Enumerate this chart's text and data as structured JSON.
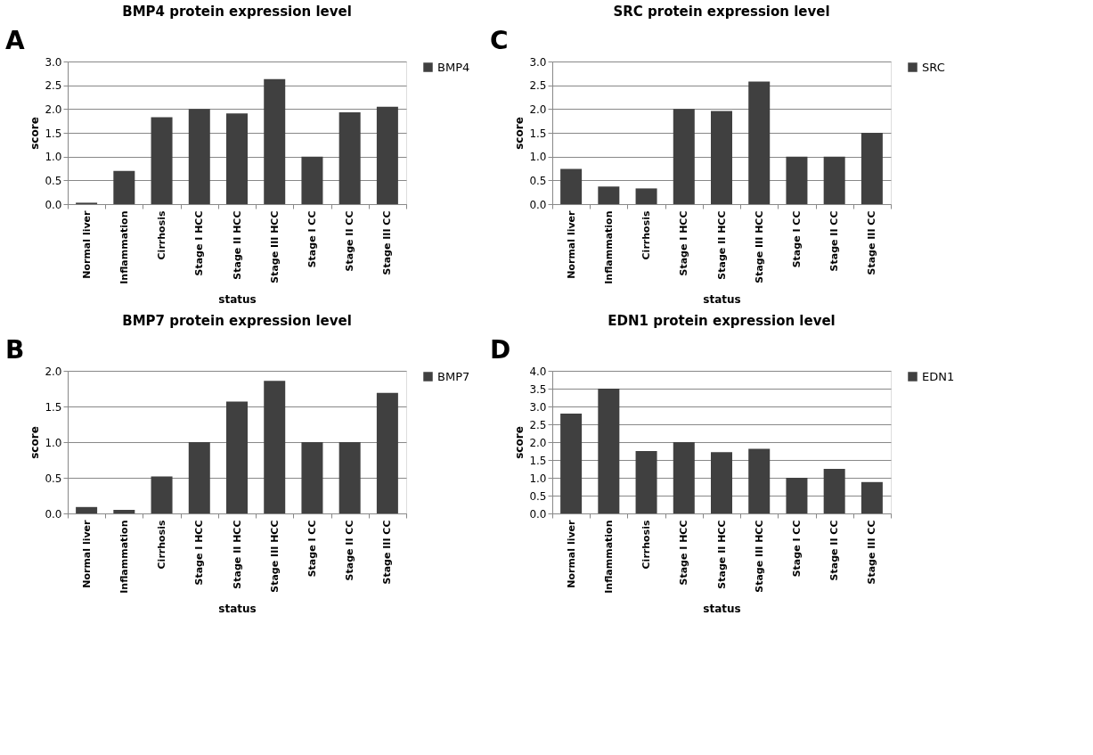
{
  "chart_data": [
    {
      "type": "bar",
      "title": "BMP4 protein expression level",
      "annotations": [
        "A"
      ],
      "xlabel": "status",
      "ylabel": "score",
      "categories": [
        "Normal liver",
        "Inflammation",
        "Cirrhosis",
        "Stage I HCC",
        "Stage II HCC",
        "Stage III HCC",
        "Stage I CC",
        "Stage II CC",
        "Stage III CC"
      ],
      "series": [
        {
          "name": "BMP4",
          "color": "#404040",
          "values": [
            0.03,
            0.7,
            1.83,
            2.0,
            1.91,
            2.63,
            1.0,
            1.93,
            2.05
          ]
        }
      ],
      "ylim": [
        0,
        3
      ],
      "yticks": [
        {
          "value": 0,
          "label": "0.0"
        },
        {
          "value": 0.5,
          "label": "0.5"
        },
        {
          "value": 1,
          "label": "1.0"
        },
        {
          "value": 1.5,
          "label": "1.5"
        },
        {
          "value": 2,
          "label": "2.0"
        },
        {
          "value": 2.5,
          "label": "2.5"
        },
        {
          "value": 3,
          "label": "3.0"
        }
      ],
      "grid": "y",
      "legend": "right"
    },
    {
      "type": "bar",
      "title": "SRC protein expression level",
      "annotations": [
        "C"
      ],
      "xlabel": "status",
      "ylabel": "score",
      "categories": [
        "Normal liver",
        "Inflammation",
        "Cirrhosis",
        "Stage I HCC",
        "Stage II HCC",
        "Stage III HCC",
        "Stage I CC",
        "Stage II CC",
        "Stage III CC"
      ],
      "series": [
        {
          "name": "SRC",
          "color": "#404040",
          "values": [
            0.74,
            0.37,
            0.33,
            2.0,
            1.96,
            2.58,
            1.0,
            1.0,
            1.5
          ]
        }
      ],
      "ylim": [
        0,
        3
      ],
      "yticks": [
        {
          "value": 0,
          "label": "0.0"
        },
        {
          "value": 0.5,
          "label": "0.5"
        },
        {
          "value": 1,
          "label": "1.0"
        },
        {
          "value": 1.5,
          "label": "1.5"
        },
        {
          "value": 2,
          "label": "2.0"
        },
        {
          "value": 2.5,
          "label": "2.5"
        },
        {
          "value": 3,
          "label": "3.0"
        }
      ],
      "grid": "y",
      "legend": "right"
    },
    {
      "type": "bar",
      "title": "BMP7 protein expression level",
      "annotations": [
        "B"
      ],
      "xlabel": "status",
      "ylabel": "score",
      "categories": [
        "Normal liver",
        "Inflammation",
        "Cirrhosis",
        "Stage I HCC",
        "Stage II HCC",
        "Stage III HCC",
        "Stage I CC",
        "Stage II CC",
        "Stage III CC"
      ],
      "series": [
        {
          "name": "BMP7",
          "color": "#404040",
          "values": [
            0.09,
            0.05,
            0.52,
            1.0,
            1.57,
            1.86,
            1.0,
            1.0,
            1.69
          ]
        }
      ],
      "ylim": [
        0,
        2
      ],
      "yticks": [
        {
          "value": 0,
          "label": "0.0"
        },
        {
          "value": 0.5,
          "label": "0.5"
        },
        {
          "value": 1,
          "label": "1.0"
        },
        {
          "value": 1.5,
          "label": "1.5"
        },
        {
          "value": 2,
          "label": "2.0"
        }
      ],
      "grid": "y",
      "legend": "right"
    },
    {
      "type": "bar",
      "title": "EDN1 protein expression level",
      "annotations": [
        "D"
      ],
      "xlabel": "status",
      "ylabel": "score",
      "categories": [
        "Normal liver",
        "Inflammation",
        "Cirrhosis",
        "Stage I HCC",
        "Stage II HCC",
        "Stage III HCC",
        "Stage I CC",
        "Stage II CC",
        "Stage III CC"
      ],
      "series": [
        {
          "name": "EDN1",
          "color": "#404040",
          "values": [
            2.8,
            3.5,
            1.75,
            2.0,
            1.72,
            1.81,
            1.0,
            1.25,
            0.88
          ]
        }
      ],
      "ylim": [
        0,
        4
      ],
      "yticks": [
        {
          "value": 0,
          "label": "0.0"
        },
        {
          "value": 0.5,
          "label": "0.5"
        },
        {
          "value": 1,
          "label": "1.0"
        },
        {
          "value": 1.5,
          "label": "1.5"
        },
        {
          "value": 2,
          "label": "2.0"
        },
        {
          "value": 2.5,
          "label": "2.5"
        },
        {
          "value": 3,
          "label": "3.0"
        },
        {
          "value": 3.5,
          "label": "3.5"
        },
        {
          "value": 4,
          "label": "4.0"
        }
      ],
      "grid": "y",
      "legend": "right"
    }
  ]
}
